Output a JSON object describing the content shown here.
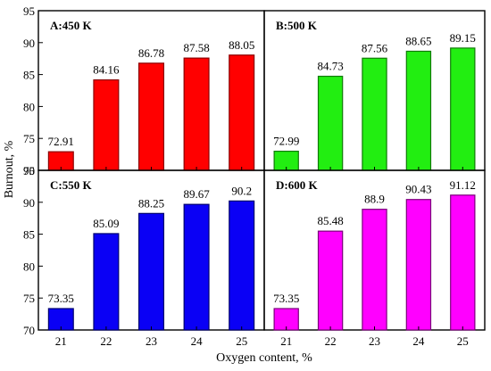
{
  "figure": {
    "ylabel": "Burnout, %",
    "xlabel": "Oxygen content, %"
  },
  "chart_data": [
    {
      "type": "bar",
      "title": "A:450 K",
      "categories": [
        "21",
        "22",
        "23",
        "24",
        "25"
      ],
      "values": [
        72.91,
        84.16,
        86.78,
        87.58,
        88.05
      ],
      "value_labels": [
        "72.91",
        "84.16",
        "86.78",
        "87.58",
        "88.05"
      ],
      "ylim": [
        70,
        95
      ],
      "yticks": [
        "95",
        "90",
        "85",
        "80",
        "75",
        "70"
      ],
      "color": "#ff0000",
      "edge_color": "#8b0000"
    },
    {
      "type": "bar",
      "title": "B:500 K",
      "categories": [
        "21",
        "22",
        "23",
        "24",
        "25"
      ],
      "values": [
        72.99,
        84.73,
        87.56,
        88.65,
        89.15
      ],
      "value_labels": [
        "72.99",
        "84.73",
        "87.56",
        "88.65",
        "89.15"
      ],
      "ylim": [
        70,
        95
      ],
      "yticks": [],
      "color": "#22ee11",
      "edge_color": "#117a08"
    },
    {
      "type": "bar",
      "title": "C:550 K",
      "categories": [
        "21",
        "22",
        "23",
        "24",
        "25"
      ],
      "values": [
        73.35,
        85.09,
        88.25,
        89.67,
        90.2
      ],
      "value_labels": [
        "73.35",
        "85.09",
        "88.25",
        "89.67",
        "90.2"
      ],
      "ylim": [
        70,
        95
      ],
      "yticks": [
        "95",
        "90",
        "85",
        "80",
        "75",
        "70"
      ],
      "xticks": [
        "21",
        "22",
        "23",
        "24",
        "25"
      ],
      "color": "#0a00f5",
      "edge_color": "#00006e"
    },
    {
      "type": "bar",
      "title": "D:600 K",
      "categories": [
        "21",
        "22",
        "23",
        "24",
        "25"
      ],
      "values": [
        73.35,
        85.48,
        88.9,
        90.43,
        91.12
      ],
      "value_labels": [
        "73.35",
        "85.48",
        "88.9",
        "90.43",
        "91.12"
      ],
      "ylim": [
        70,
        95
      ],
      "yticks": [],
      "xticks": [
        "21",
        "22",
        "23",
        "24",
        "25"
      ],
      "color": "#ff00ff",
      "edge_color": "#7a007a"
    }
  ]
}
